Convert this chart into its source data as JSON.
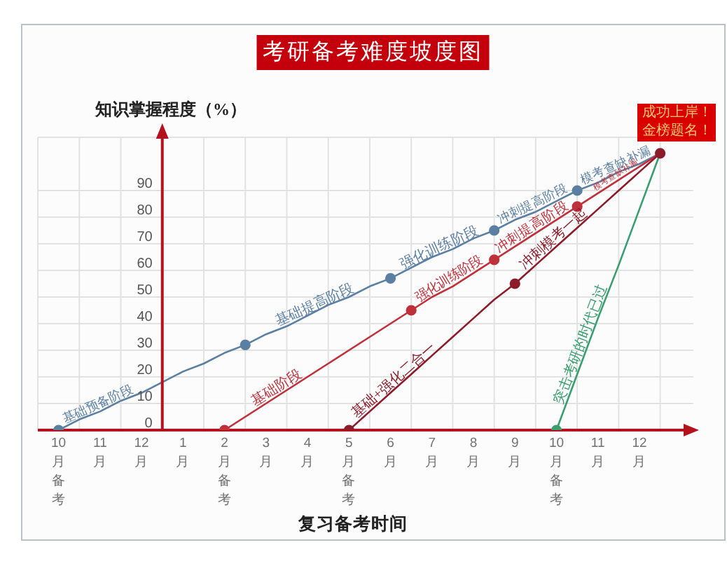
{
  "chart_data": {
    "type": "line",
    "title": "考研备考难度坡度图",
    "xlabel": "复习备考时间",
    "ylabel": "知识掌握程度（%）",
    "categories": [
      "10月备考",
      null,
      "11月",
      null,
      "12月",
      null,
      "1月",
      null,
      "2月备考",
      null,
      "3月",
      null,
      "4月",
      null,
      "5月备考",
      null,
      "6月",
      null,
      "7月",
      null,
      "8月",
      null,
      "9月",
      null,
      "10月备考",
      null,
      "11月",
      null,
      "12月",
      null
    ],
    "ylim": [
      0,
      110
    ],
    "yticks": [
      0,
      10,
      20,
      30,
      40,
      50,
      60,
      70,
      80,
      90
    ],
    "grid": true,
    "series": [
      {
        "name": "基础预备阶段",
        "color": "#5a7fa3",
        "values": [
          0,
          4,
          7,
          11,
          14,
          18,
          22,
          25,
          29,
          32,
          null,
          null,
          null,
          null,
          null,
          null,
          null,
          null,
          null,
          null,
          null,
          null,
          null,
          null,
          null,
          null,
          null,
          null,
          null,
          null
        ]
      },
      {
        "name": "基础提高阶段",
        "color": "#5a7fa3",
        "values": [
          null,
          null,
          null,
          null,
          null,
          null,
          null,
          null,
          null,
          32,
          36,
          39,
          43,
          47,
          50,
          54,
          57,
          null,
          null,
          null,
          null,
          null,
          null,
          null,
          null,
          null,
          null,
          null,
          null,
          null
        ]
      },
      {
        "name": "强化训练阶段",
        "color": "#5a7fa3",
        "values": [
          null,
          null,
          null,
          null,
          null,
          null,
          null,
          null,
          null,
          null,
          null,
          null,
          null,
          null,
          null,
          null,
          57,
          61,
          65,
          68,
          72,
          75,
          null,
          null,
          null,
          null,
          null,
          null,
          null,
          null
        ]
      },
      {
        "name": "冲刺提高阶段",
        "color": "#5a7fa3",
        "values": [
          null,
          null,
          null,
          null,
          null,
          null,
          null,
          null,
          null,
          null,
          null,
          null,
          null,
          null,
          null,
          null,
          null,
          null,
          null,
          null,
          null,
          75,
          79,
          82,
          86,
          90,
          null,
          null,
          null,
          null
        ]
      },
      {
        "name": "模考查缺补漏",
        "color": "#5a7fa3",
        "values": [
          null,
          null,
          null,
          null,
          null,
          null,
          null,
          null,
          null,
          null,
          null,
          null,
          null,
          null,
          null,
          null,
          null,
          null,
          null,
          null,
          null,
          null,
          null,
          null,
          null,
          90,
          93,
          97,
          100,
          104
        ]
      },
      {
        "name": "基础阶段",
        "color": "#c0303a",
        "values": [
          null,
          null,
          null,
          null,
          null,
          null,
          null,
          null,
          0,
          5,
          10,
          15,
          20,
          25,
          30,
          35,
          40,
          45,
          null,
          null,
          null,
          null,
          null,
          null,
          null,
          null,
          null,
          null,
          null,
          null
        ]
      },
      {
        "name": "强化训练阶段",
        "color": "#c0303a",
        "values": [
          null,
          null,
          null,
          null,
          null,
          null,
          null,
          null,
          null,
          null,
          null,
          null,
          null,
          null,
          null,
          null,
          null,
          45,
          50,
          54,
          59,
          64,
          null,
          null,
          null,
          null,
          null,
          null,
          null,
          null
        ]
      },
      {
        "name": "冲刺提高阶段",
        "color": "#c0303a",
        "values": [
          null,
          null,
          null,
          null,
          null,
          null,
          null,
          null,
          null,
          null,
          null,
          null,
          null,
          null,
          null,
          null,
          null,
          null,
          null,
          null,
          null,
          64,
          69,
          74,
          79,
          84,
          null,
          null,
          null,
          null
        ]
      },
      {
        "name": "模考查缺补漏",
        "color": "#c0303a",
        "values": [
          null,
          null,
          null,
          null,
          null,
          null,
          null,
          null,
          null,
          null,
          null,
          null,
          null,
          null,
          null,
          null,
          null,
          null,
          null,
          null,
          null,
          null,
          null,
          null,
          null,
          84,
          89,
          94,
          99,
          104
        ]
      },
      {
        "name": "突击考研的时代已过",
        "color": "#3a9e6e",
        "values": [
          null,
          null,
          null,
          null,
          null,
          null,
          null,
          null,
          null,
          null,
          null,
          null,
          null,
          null,
          null,
          null,
          null,
          null,
          null,
          null,
          null,
          null,
          null,
          null,
          0,
          21,
          42,
          62,
          83,
          104
        ]
      },
      {
        "name": "基础+强化二合一",
        "color": "#8c1c2a",
        "values": [
          null,
          null,
          null,
          null,
          null,
          null,
          null,
          null,
          null,
          null,
          null,
          null,
          null,
          null,
          0,
          7,
          14,
          21,
          28,
          35,
          42,
          49,
          55,
          null,
          null,
          null,
          null,
          null,
          null,
          null
        ]
      },
      {
        "name": "冲刺模考一起",
        "color": "#8c1c2a",
        "values": [
          null,
          null,
          null,
          null,
          null,
          null,
          null,
          null,
          null,
          null,
          null,
          null,
          null,
          null,
          null,
          null,
          null,
          null,
          null,
          null,
          null,
          null,
          55,
          62,
          69,
          76,
          83,
          90,
          97,
          104
        ]
      },
      {
        "type": "scatter",
        "color": "#5a7fa3",
        "values": [
          0,
          null,
          null,
          null,
          null,
          null,
          null,
          null,
          null,
          32,
          null,
          null,
          null,
          null,
          null,
          null,
          57,
          null,
          null,
          null,
          null,
          75,
          null,
          null,
          null,
          90,
          null,
          null,
          null,
          null
        ]
      },
      {
        "type": "scatter",
        "color": "#c0303a",
        "values": [
          null,
          null,
          null,
          null,
          null,
          null,
          null,
          null,
          0,
          null,
          null,
          null,
          null,
          null,
          null,
          null,
          null,
          45,
          null,
          null,
          null,
          64,
          null,
          null,
          null,
          84,
          null,
          null,
          null,
          null
        ]
      },
      {
        "type": "scatter",
        "color": "#3a9e6e",
        "values": [
          null,
          null,
          null,
          null,
          null,
          null,
          null,
          null,
          null,
          null,
          null,
          null,
          null,
          null,
          null,
          null,
          null,
          null,
          null,
          null,
          null,
          null,
          null,
          null,
          0,
          null,
          null,
          null,
          null,
          null
        ]
      },
      {
        "type": "scatter",
        "color": "#8c1c2a",
        "values": [
          null,
          null,
          null,
          null,
          null,
          null,
          null,
          null,
          null,
          null,
          null,
          null,
          null,
          null,
          0,
          null,
          null,
          null,
          null,
          null,
          null,
          null,
          55,
          null,
          null,
          null,
          null,
          null,
          null,
          104
        ]
      }
    ],
    "annotations": [
      "成功上岸！金榜题名！"
    ]
  }
}
